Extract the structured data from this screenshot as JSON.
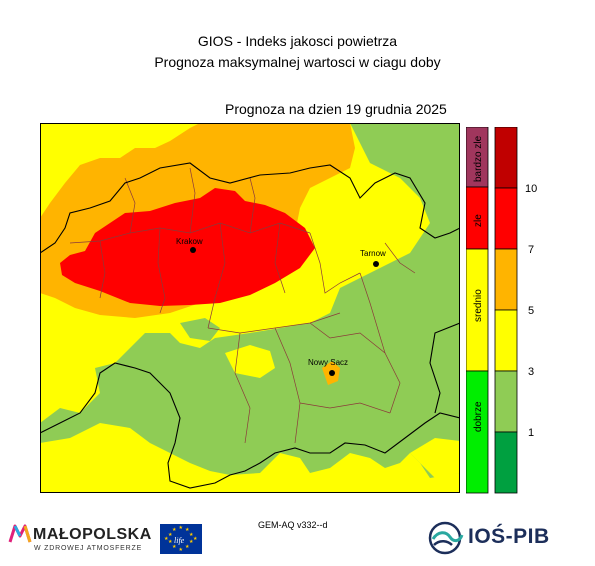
{
  "header": {
    "title": "GIOS - Indeks jakosci powietrza",
    "subtitle": "Prognoza maksymalnej wartosci w ciagu doby",
    "forecast_date": "Prognoza na dzien  19 grudnia 2025"
  },
  "map": {
    "cities": [
      {
        "name": "Krakow"
      },
      {
        "name": "Tarnow"
      },
      {
        "name": "Nowy Sacz"
      }
    ]
  },
  "legend": {
    "categories": [
      {
        "label": "bardzo zle",
        "color": "#a0365d"
      },
      {
        "label": "zle",
        "color": "#ff0000"
      },
      {
        "label": "srednio",
        "color": "#ffff00"
      },
      {
        "label": "dobrze",
        "color": "#00ee00"
      }
    ],
    "levels": [
      {
        "color": "#c00000"
      },
      {
        "color": "#ff0000"
      },
      {
        "color": "#ffb400"
      },
      {
        "color": "#ffff00"
      },
      {
        "color": "#8fcc55"
      },
      {
        "color": "#00a040"
      }
    ],
    "ticks": [
      "10",
      "7",
      "5",
      "3",
      "1"
    ]
  },
  "footer": {
    "model": "GEM-AQ v332--d",
    "malopolska": "MAŁOPOLSKA",
    "malopolska_sub": "W ZDROWEJ ATMOSFERZE",
    "eu_label": "life",
    "ios": "IOŚ-PIB"
  }
}
